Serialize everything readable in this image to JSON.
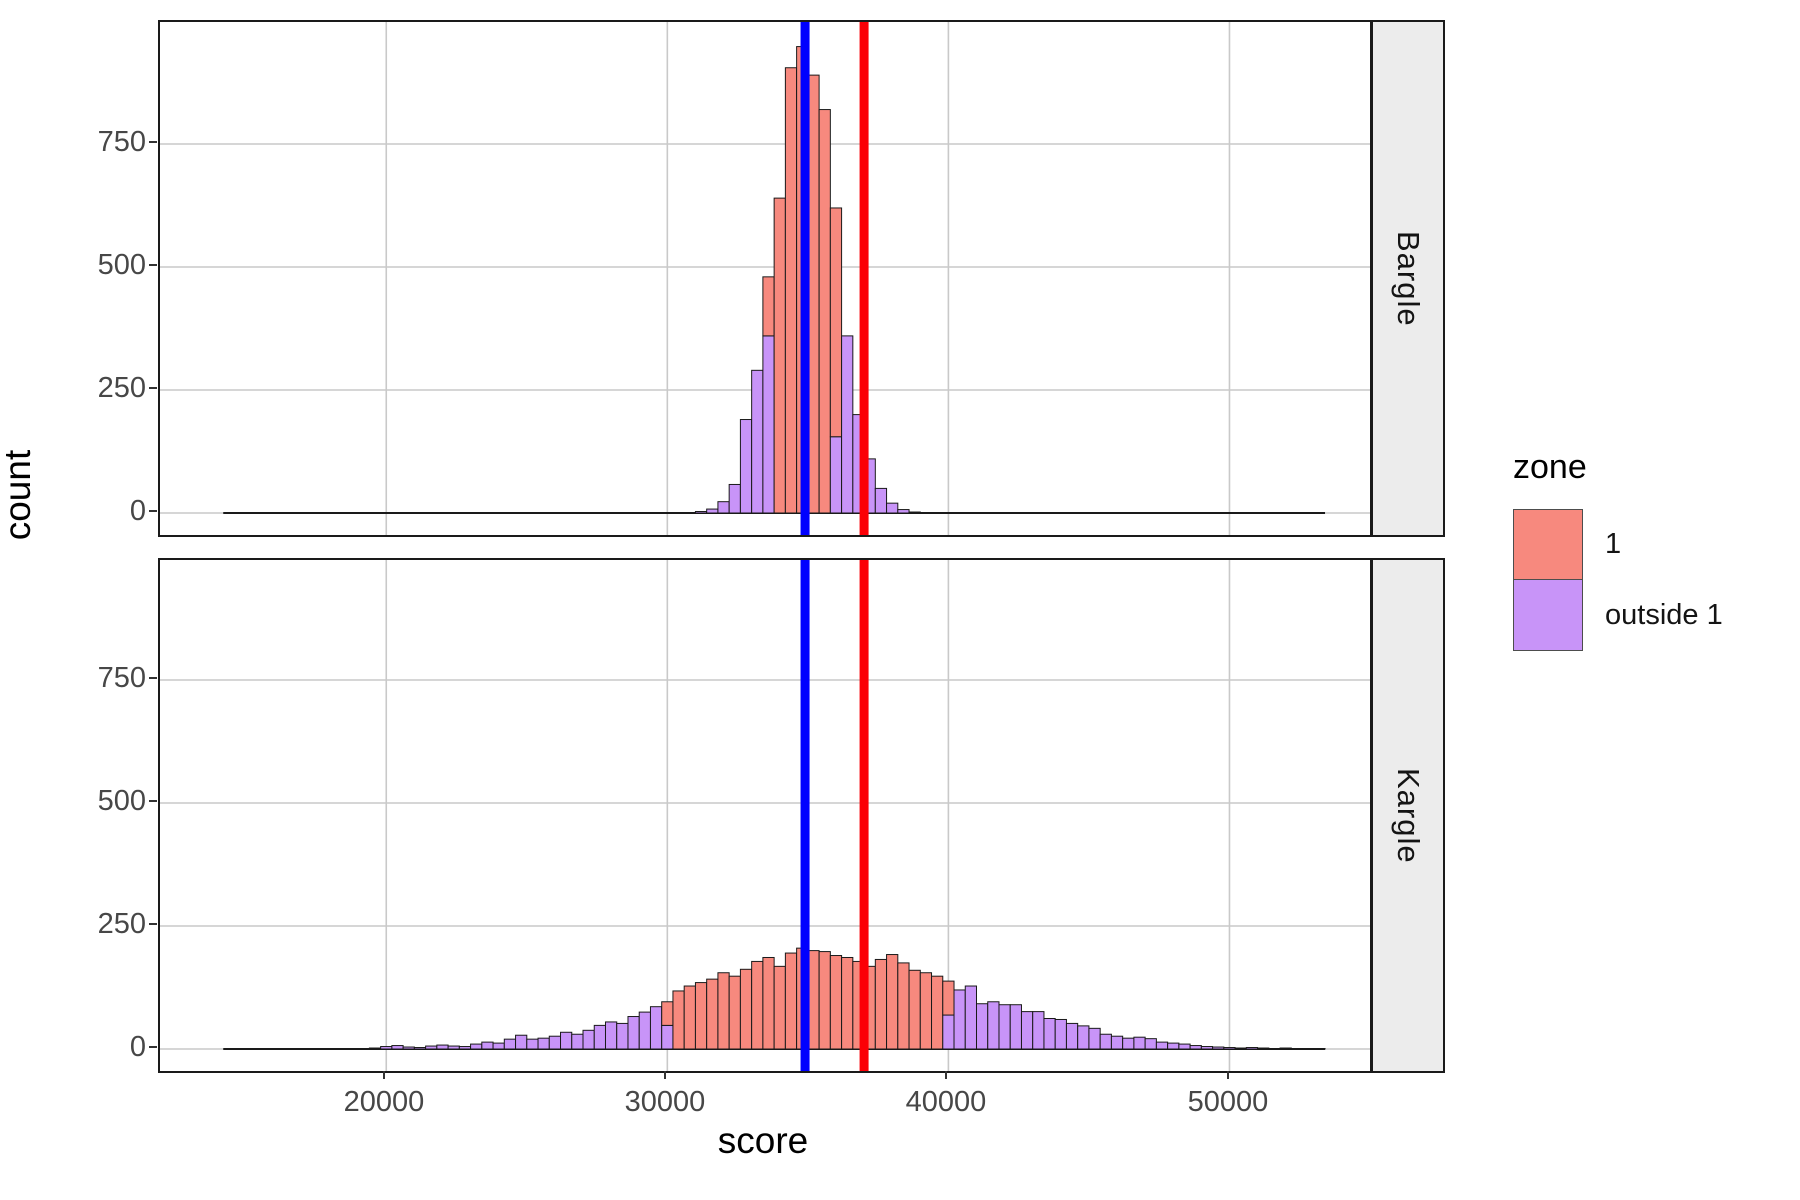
{
  "chart_data": {
    "type": "bar",
    "subtype": "faceted-stacked-histogram",
    "title": "",
    "xlabel": "score",
    "ylabel": "count",
    "x_domain": [
      11950,
      55000
    ],
    "y_domain": [
      0,
      1000
    ],
    "x_ticks": [
      20000,
      30000,
      40000,
      50000
    ],
    "y_ticks": [
      0,
      250,
      500,
      750
    ],
    "grid": "major-only",
    "bin_start": 14200,
    "bin_width": 400,
    "zero_line": {
      "from": 14200,
      "to": 53400
    },
    "vlines": [
      {
        "name": "blue-line",
        "x": 34900,
        "color": "#0000ff",
        "width": 9
      },
      {
        "name": "red-line",
        "x": 37000,
        "color": "#fb0006",
        "width": 9
      }
    ],
    "legend": {
      "title": "zone",
      "position": "right",
      "entries": [
        {
          "label": "1",
          "color": "#f7897e"
        },
        {
          "label": "outside 1",
          "color": "#c894f8"
        }
      ]
    },
    "facets": [
      {
        "label": "Bargle",
        "zone1_range": [
          33700,
          36100
        ],
        "counts": [
          0,
          0,
          0,
          0,
          0,
          0,
          0,
          0,
          0,
          0,
          0,
          0,
          0,
          0,
          0,
          0,
          0,
          0,
          0,
          0,
          0,
          0,
          0,
          0,
          0,
          0,
          0,
          0,
          0,
          0,
          0,
          0,
          0,
          0,
          0,
          0,
          0,
          0,
          0,
          0,
          0,
          1,
          3,
          8,
          23,
          58,
          190,
          290,
          480,
          640,
          905,
          948,
          890,
          820,
          620,
          360,
          200,
          110,
          50,
          20,
          7,
          2,
          1,
          0,
          0,
          0,
          0,
          0,
          0,
          0,
          0,
          0,
          0,
          0,
          0,
          0,
          0,
          0,
          0,
          0,
          0,
          0,
          0,
          0,
          0,
          0,
          0,
          0,
          0,
          0,
          0,
          0,
          0,
          0,
          0,
          0,
          0,
          0
        ]
      },
      {
        "label": "Kargle",
        "zone1_range": [
          30000,
          40000
        ],
        "counts": [
          0,
          0,
          0,
          0,
          0,
          0,
          0,
          0,
          0,
          0,
          0,
          0,
          0,
          2,
          5,
          7,
          4,
          3,
          6,
          8,
          6,
          5,
          10,
          14,
          12,
          20,
          28,
          20,
          22,
          26,
          34,
          30,
          38,
          48,
          55,
          52,
          66,
          75,
          86,
          96,
          118,
          128,
          135,
          142,
          155,
          148,
          162,
          178,
          186,
          168,
          195,
          205,
          200,
          198,
          190,
          186,
          178,
          168,
          182,
          192,
          175,
          160,
          155,
          148,
          138,
          120,
          128,
          92,
          96,
          90,
          90,
          76,
          76,
          62,
          60,
          52,
          47,
          42,
          30,
          26,
          22,
          24,
          21,
          14,
          12,
          10,
          7,
          5,
          4,
          3,
          2,
          3,
          2,
          1,
          2,
          1,
          1,
          1
        ]
      }
    ],
    "style_colors": {
      "bar_outline": "#1a1a1a",
      "gridline": "#c9c9c9",
      "panel_border": "#1a1a1a",
      "strip_bg": "#ececec",
      "tick_label": "#474747"
    }
  }
}
